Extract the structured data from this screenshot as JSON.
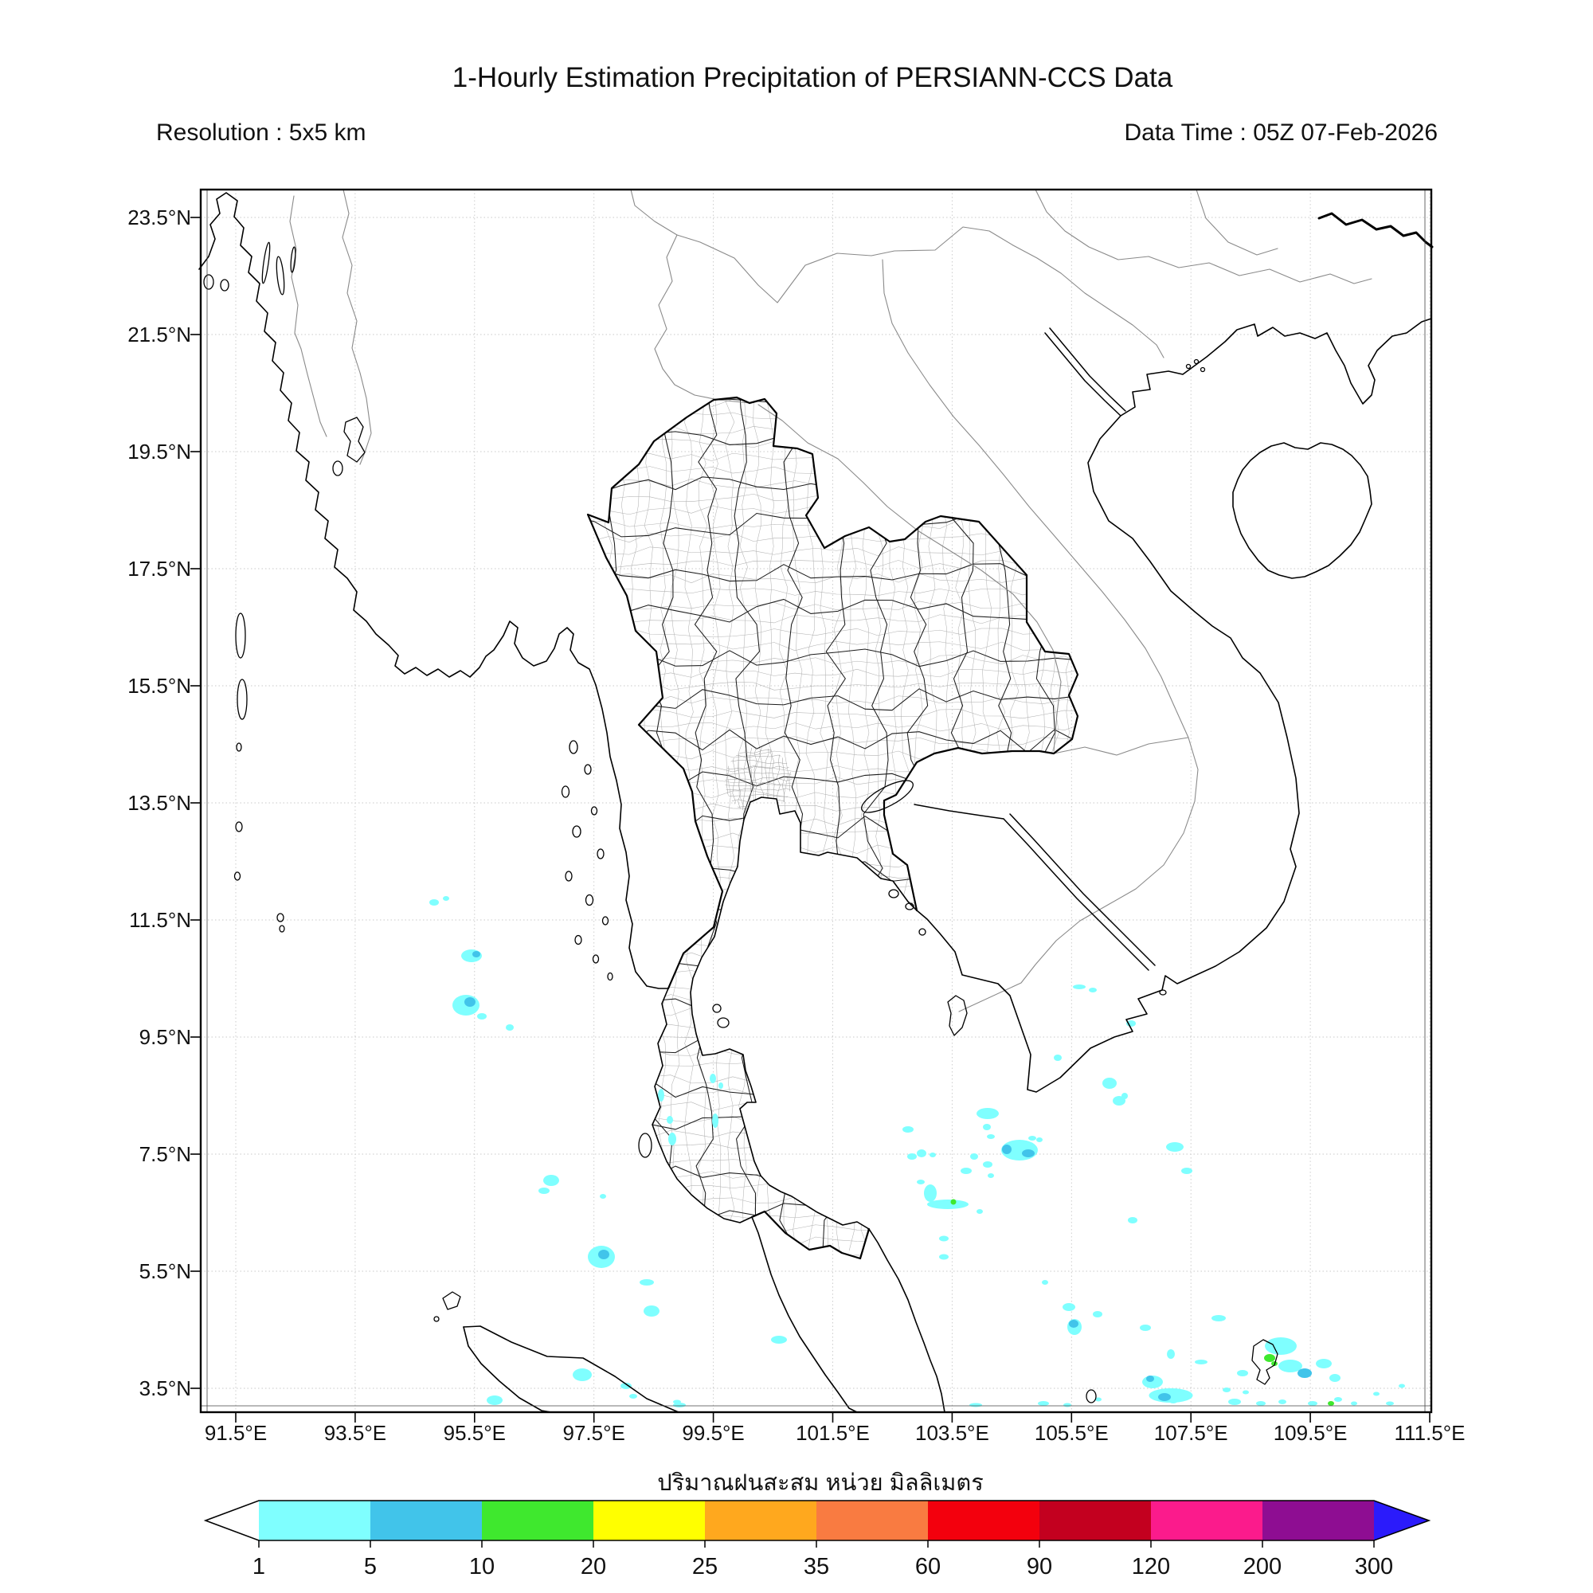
{
  "header": {
    "title": "1-Hourly Estimation Precipitation of PERSIANN-CCS Data",
    "resolution_label": "Resolution : 5x5 km",
    "datatime_label": "Data Time : 05Z 07-Feb-2026"
  },
  "axis": {
    "x_labels": [
      "91.5°E",
      "93.5°E",
      "95.5°E",
      "97.5°E",
      "99.5°E",
      "101.5°E",
      "103.5°E",
      "105.5°E",
      "107.5°E",
      "109.5°E",
      "111.5°E"
    ],
    "y_labels": [
      "23.5°N",
      "21.5°N",
      "19.5°N",
      "17.5°N",
      "15.5°N",
      "13.5°N",
      "11.5°N",
      "9.5°N",
      "7.5°N",
      "5.5°N",
      "3.5°N"
    ]
  },
  "colorbar": {
    "unit_label": "ปริมาณฝนสะสม หน่วย มิลลิเมตร",
    "values": [
      "1",
      "5",
      "10",
      "20",
      "25",
      "35",
      "60",
      "90",
      "120",
      "200",
      "300"
    ],
    "segment_colors": [
      "#7fffff",
      "#41c4ea",
      "#3fe82e",
      "#ffff00",
      "#ffa81e",
      "#f97b41",
      "#f3000d",
      "#c3001f",
      "#fb1b8c",
      "#8e0d92"
    ],
    "under_color": "#ffffff",
    "over_color": "#2b1bfb"
  },
  "chart_data": {
    "type": "heatmap",
    "title": "1-Hourly Estimation Precipitation of PERSIANN-CCS Data",
    "scale_boundaries_mm": [
      1,
      5,
      10,
      20,
      25,
      35,
      60,
      90,
      120,
      200,
      300
    ],
    "lon_range_deg_e": [
      91.5,
      111.5
    ],
    "lat_range_deg_n": [
      3.5,
      23.5
    ],
    "grid": "2deg dotted graticule",
    "legend_position": "bottom"
  },
  "precipitation_cells": [
    [
      293,
      895,
      12,
      8,
      1
    ],
    [
      308,
      890,
      8,
      6,
      1
    ],
    [
      340,
      962,
      26,
      16,
      1
    ],
    [
      346,
      960,
      10,
      8,
      2
    ],
    [
      333,
      1024,
      34,
      26,
      1
    ],
    [
      338,
      1020,
      14,
      12,
      2
    ],
    [
      353,
      1038,
      12,
      8,
      1
    ],
    [
      388,
      1052,
      10,
      8,
      1
    ],
    [
      440,
      1244,
      20,
      14,
      1
    ],
    [
      431,
      1257,
      14,
      8,
      1
    ],
    [
      505,
      1264,
      8,
      6,
      1
    ],
    [
      578,
      1137,
      8,
      16,
      1
    ],
    [
      589,
      1168,
      8,
      10,
      1
    ],
    [
      592,
      1192,
      10,
      16,
      1
    ],
    [
      643,
      1116,
      8,
      12,
      1
    ],
    [
      653,
      1125,
      6,
      8,
      1
    ],
    [
      646,
      1169,
      8,
      18,
      1
    ],
    [
      503,
      1340,
      34,
      28,
      1
    ],
    [
      506,
      1337,
      14,
      12,
      2
    ],
    [
      560,
      1372,
      18,
      8,
      1
    ],
    [
      566,
      1408,
      20,
      14,
      1
    ],
    [
      726,
      1444,
      20,
      10,
      1
    ],
    [
      479,
      1488,
      24,
      16,
      1
    ],
    [
      534,
      1502,
      14,
      8,
      1
    ],
    [
      543,
      1515,
      10,
      6,
      1
    ],
    [
      598,
      1522,
      10,
      5,
      1
    ],
    [
      369,
      1520,
      20,
      12,
      1
    ],
    [
      601,
      1526,
      16,
      6,
      1
    ],
    [
      888,
      1180,
      14,
      8,
      1
    ],
    [
      905,
      1210,
      12,
      10,
      1
    ],
    [
      919,
      1212,
      8,
      6,
      1
    ],
    [
      988,
      1160,
      28,
      14,
      1
    ],
    [
      987,
      1177,
      10,
      8,
      1
    ],
    [
      1028,
      1206,
      46,
      26,
      1
    ],
    [
      1012,
      1205,
      12,
      12,
      2
    ],
    [
      1039,
      1210,
      16,
      10,
      2
    ],
    [
      961,
      1232,
      14,
      8,
      1
    ],
    [
      992,
      1238,
      8,
      6,
      1
    ],
    [
      916,
      1260,
      16,
      22,
      1
    ],
    [
      938,
      1274,
      52,
      12,
      1
    ],
    [
      945,
      1271,
      7,
      7,
      3
    ],
    [
      978,
      1283,
      8,
      6,
      1
    ],
    [
      933,
      1317,
      12,
      7,
      1
    ],
    [
      933,
      1340,
      12,
      7,
      1
    ],
    [
      1060,
      1372,
      8,
      6,
      1
    ],
    [
      1090,
      1403,
      16,
      10,
      1
    ],
    [
      1097,
      1428,
      18,
      20,
      1
    ],
    [
      1096,
      1424,
      12,
      10,
      2
    ],
    [
      1126,
      1412,
      12,
      8,
      1
    ],
    [
      1186,
      1429,
      14,
      8,
      1
    ],
    [
      1218,
      1462,
      10,
      12,
      1
    ],
    [
      1278,
      1417,
      18,
      8,
      1
    ],
    [
      1308,
      1486,
      14,
      8,
      1
    ],
    [
      1256,
      1472,
      16,
      6,
      1
    ],
    [
      1195,
      1497,
      26,
      16,
      1
    ],
    [
      1192,
      1493,
      10,
      8,
      2
    ],
    [
      1221,
      1520,
      12,
      8,
      1
    ],
    [
      1342,
      1467,
      14,
      10,
      3
    ],
    [
      1348,
      1474,
      8,
      6,
      3
    ],
    [
      1356,
      1452,
      40,
      22,
      1
    ],
    [
      1368,
      1477,
      30,
      16,
      1
    ],
    [
      1386,
      1486,
      18,
      12,
      2
    ],
    [
      1410,
      1474,
      20,
      12,
      1
    ],
    [
      1424,
      1492,
      14,
      10,
      1
    ],
    [
      1218,
      1514,
      55,
      18,
      1
    ],
    [
      1210,
      1516,
      16,
      10,
      2
    ],
    [
      1419,
      1524,
      8,
      6,
      3
    ],
    [
      1298,
      1522,
      16,
      8,
      1
    ],
    [
      1331,
      1524,
      12,
      6,
      1
    ],
    [
      1358,
      1522,
      10,
      6,
      1
    ],
    [
      1288,
      1507,
      10,
      6,
      1
    ],
    [
      1312,
      1510,
      8,
      5,
      1
    ],
    [
      1396,
      1524,
      12,
      6,
      1
    ],
    [
      1428,
      1519,
      10,
      6,
      1
    ],
    [
      1448,
      1524,
      8,
      5,
      1
    ],
    [
      1476,
      1512,
      8,
      5,
      1
    ],
    [
      1493,
      1524,
      10,
      5,
      1
    ],
    [
      1508,
      1502,
      8,
      5,
      1
    ],
    [
      1058,
      1524,
      14,
      6,
      1
    ],
    [
      1088,
      1526,
      10,
      5,
      1
    ],
    [
      1127,
      1519,
      8,
      5,
      1
    ],
    [
      973,
      1526,
      16,
      5,
      1
    ],
    [
      1103,
      1001,
      16,
      6,
      1
    ],
    [
      1120,
      1005,
      10,
      6,
      1
    ],
    [
      1076,
      1090,
      10,
      8,
      1
    ],
    [
      1141,
      1122,
      18,
      14,
      1
    ],
    [
      1153,
      1144,
      16,
      12,
      1
    ],
    [
      1160,
      1138,
      8,
      8,
      1
    ],
    [
      893,
      1214,
      12,
      8,
      1
    ],
    [
      904,
      1246,
      10,
      6,
      1
    ],
    [
      971,
      1214,
      10,
      8,
      1
    ],
    [
      988,
      1224,
      12,
      8,
      1
    ],
    [
      992,
      1189,
      10,
      6,
      1
    ],
    [
      1044,
      1191,
      10,
      6,
      1
    ],
    [
      1053,
      1193,
      8,
      6,
      1
    ],
    [
      1223,
      1202,
      22,
      12,
      1
    ],
    [
      1238,
      1232,
      14,
      8,
      1
    ],
    [
      1170,
      1294,
      12,
      8,
      1
    ],
    [
      1168,
      1047,
      12,
      8,
      1
    ]
  ]
}
